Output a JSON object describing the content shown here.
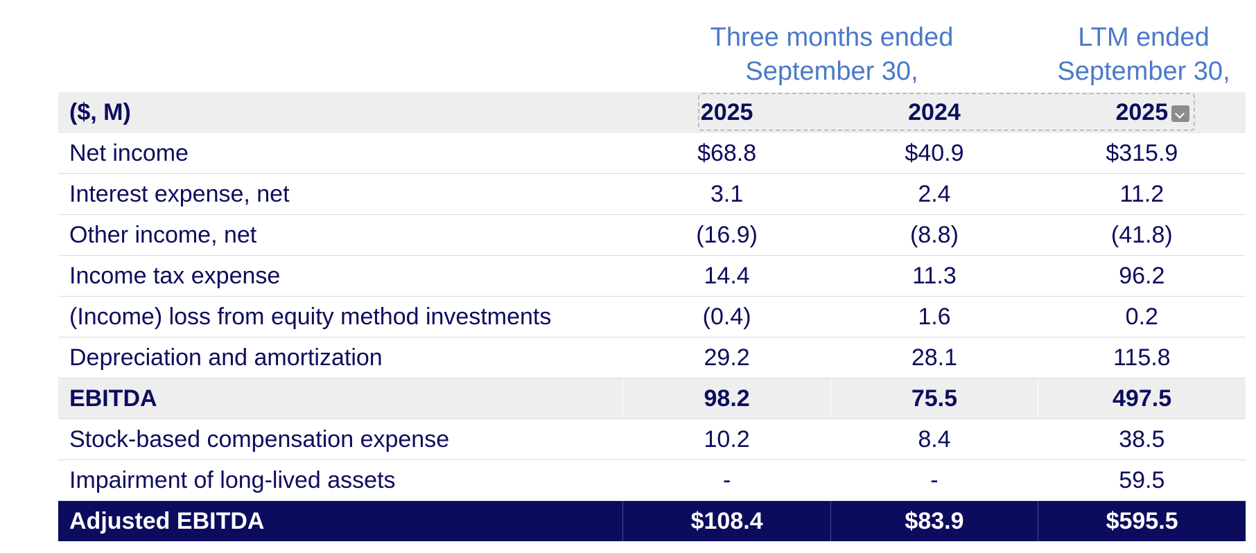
{
  "group_headers": {
    "three_months": {
      "line1": "Three months ended",
      "line2": "September 30,"
    },
    "ltm": {
      "line1": "LTM ended",
      "line2": "September 30,"
    }
  },
  "table": {
    "header": {
      "label": "($, M)",
      "col1": "2025",
      "col2": "2024",
      "col3": "2025"
    },
    "rows": [
      {
        "label": "Net income",
        "v1": "$68.8",
        "v2": "$40.9",
        "v3": "$315.9"
      },
      {
        "label": "Interest expense, net",
        "v1": "3.1",
        "v2": "2.4",
        "v3": "11.2"
      },
      {
        "label": "Other income, net",
        "v1": "(16.9)",
        "v2": "(8.8)",
        "v3": "(41.8)"
      },
      {
        "label": "Income tax expense",
        "v1": "14.4",
        "v2": "11.3",
        "v3": "96.2"
      },
      {
        "label": "(Income) loss from equity method investments",
        "v1": "(0.4)",
        "v2": "1.6",
        "v3": "0.2"
      },
      {
        "label": "Depreciation and amortization",
        "v1": "29.2",
        "v2": "28.1",
        "v3": "115.8"
      },
      {
        "label": "EBITDA",
        "v1": "98.2",
        "v2": "75.5",
        "v3": "497.5"
      },
      {
        "label": "Stock-based compensation expense",
        "v1": "10.2",
        "v2": "8.4",
        "v3": "38.5"
      },
      {
        "label": "Impairment of long-lived assets",
        "v1": "-",
        "v2": "-",
        "v3": "59.5"
      },
      {
        "label": "Adjusted EBITDA",
        "v1": "$108.4",
        "v2": "$83.9",
        "v3": "$595.5"
      }
    ]
  },
  "icons": {
    "dropdown": "chevron-down-icon"
  },
  "colors": {
    "text_navy": "#0d0d5e",
    "header_blue": "#4a7ac8",
    "total_row_bg": "#0c0c5e",
    "shade_row_bg": "#eeeeee"
  }
}
